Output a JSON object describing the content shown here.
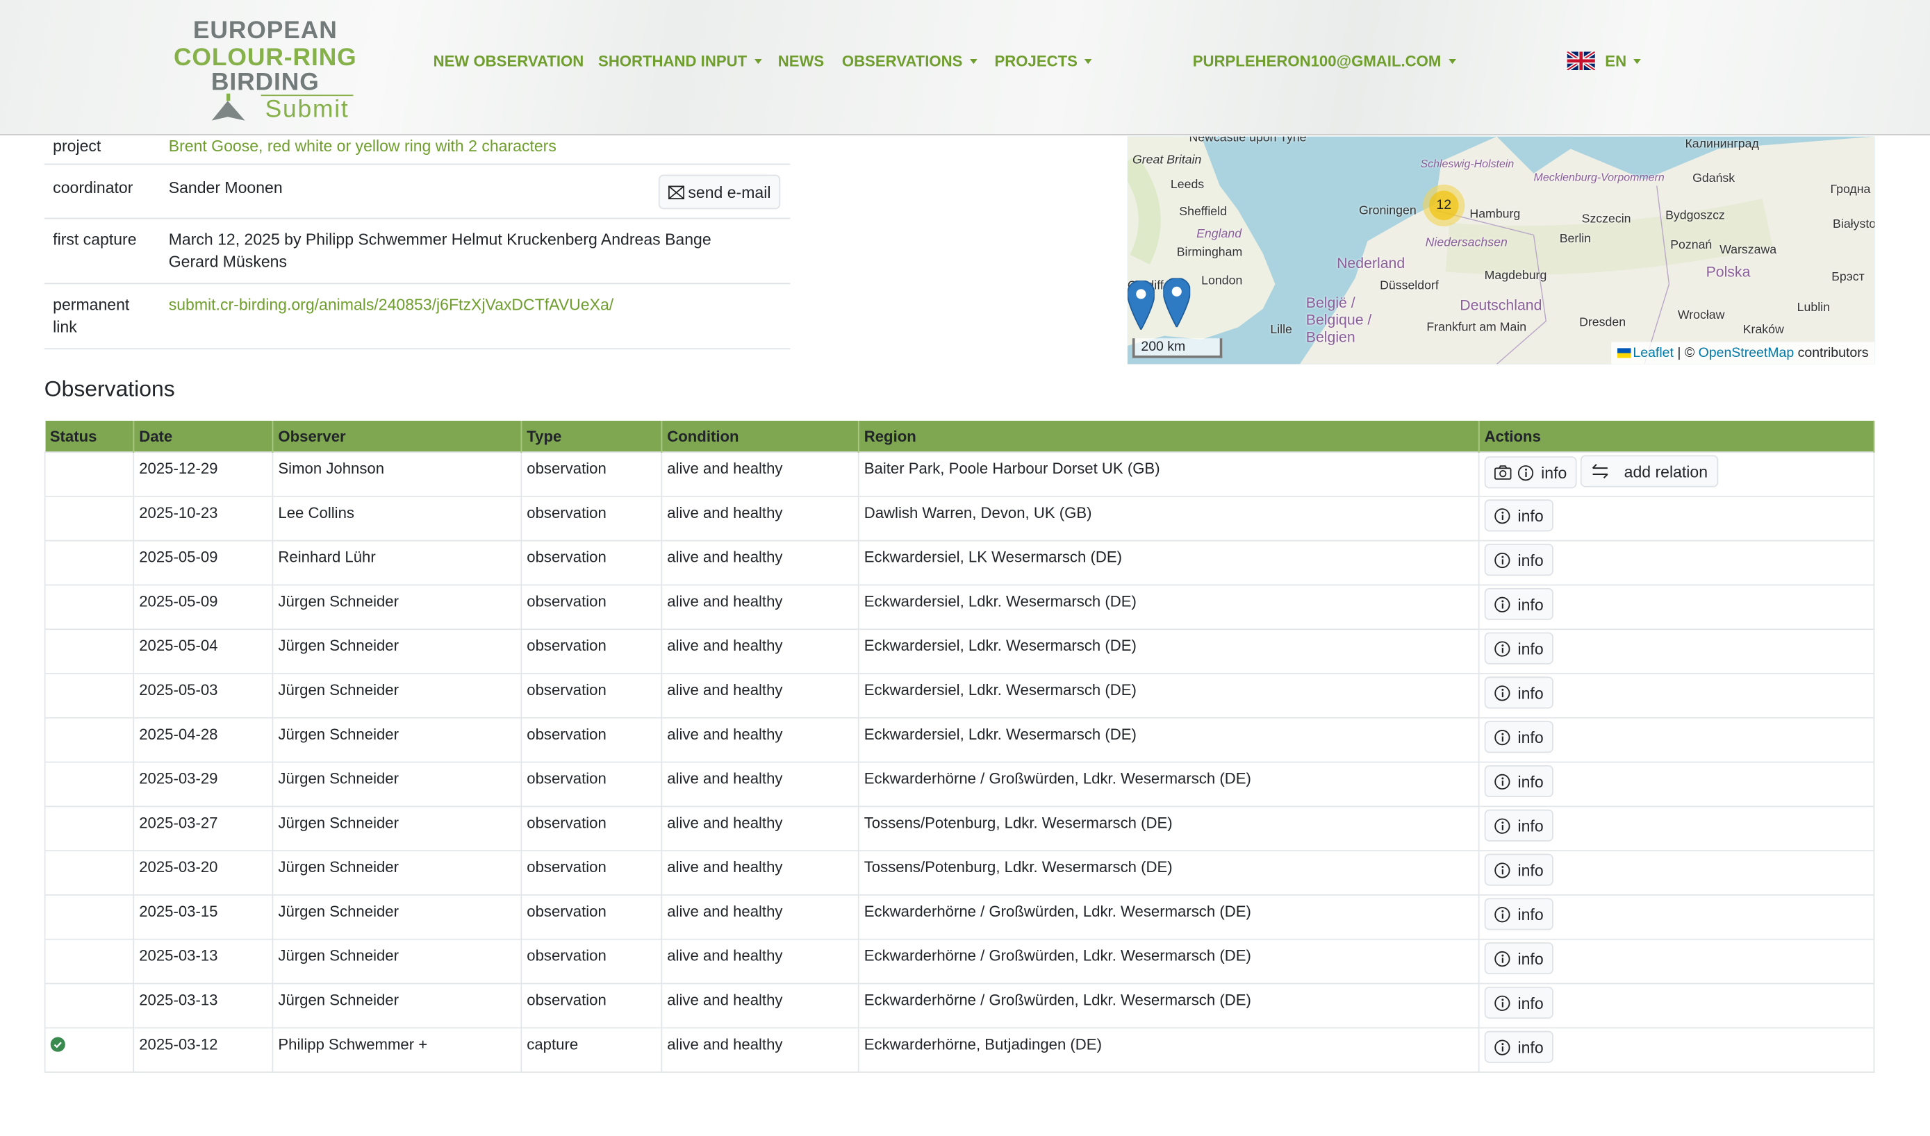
{
  "header": {
    "logo": {
      "line1": "EUROPEAN",
      "line2": "COLOUR-RING",
      "line3": "BIRDING",
      "line4": "Submit"
    },
    "nav": [
      {
        "label": "NEW OBSERVATION",
        "dropdown": false
      },
      {
        "label": "SHORTHAND INPUT",
        "dropdown": true
      },
      {
        "label": "NEWS",
        "dropdown": false
      },
      {
        "label": "OBSERVATIONS",
        "dropdown": true
      },
      {
        "label": "PROJECTS",
        "dropdown": true
      }
    ],
    "user": "PURPLEHERON100@GMAIL.COM",
    "language": "EN",
    "language_icon": "uk-flag-icon"
  },
  "details": {
    "project": {
      "label": "project",
      "value": "Brent Goose, red white or yellow ring with 2 characters"
    },
    "coordinator": {
      "label": "coordinator",
      "value": "Sander Moonen",
      "button": "send e-mail"
    },
    "first_capture": {
      "label": "first capture",
      "value": "March 12, 2025 by Philipp Schwemmer Helmut Kruckenberg Andreas Bange Gerard Müskens"
    },
    "permanent_link": {
      "label": "permanent link",
      "value": "submit.cr-birding.org/animals/240853/j6FtzXjVaxDCTfAVUeXa/"
    }
  },
  "map": {
    "cluster_count": "12",
    "scale": "200 km",
    "attribution": {
      "leaflet": "Leaflet",
      "sep": " | © ",
      "osm": "OpenStreetMap",
      "rest": " contributors"
    },
    "labels": [
      "Newcastle upon Tyne",
      "Great Britain",
      "Leeds",
      "Sheffield",
      "England",
      "Birmingham",
      "London",
      "Cardiff",
      "Groningen",
      "Hamburg",
      "Schleswig-Holstein",
      "Mecklenburg-Vorpommern",
      "Niedersachsen",
      "Nederland",
      "Düsseldorf",
      "Deutschland",
      "België / Belgique / Belgien",
      "Lille",
      "Frankfurt am Main",
      "Magdeburg",
      "Berlin",
      "Szczecin",
      "Dresden",
      "Gdańsk",
      "Калининград",
      "Bydgoszcz",
      "Poznań",
      "Polska",
      "Warszawa",
      "Wrocław",
      "Lublin",
      "Гродна",
      "Białystok",
      "Брэст",
      "Kraków"
    ]
  },
  "observations": {
    "title": "Observations",
    "columns": [
      "Status",
      "Date",
      "Observer",
      "Type",
      "Condition",
      "Region",
      "Actions"
    ],
    "info_label": "info",
    "add_relation_label": "add relation",
    "status_color": "#3a8a4f",
    "header_color": "#7fa650",
    "rows": [
      {
        "status": "",
        "date": "2025-12-29",
        "observer": "Simon Johnson",
        "type": "observation",
        "condition": "alive and healthy",
        "region": "Baiter Park, Poole Harbour Dorset UK (GB)",
        "photo": true,
        "relation": true
      },
      {
        "status": "",
        "date": "2025-10-23",
        "observer": "Lee Collins",
        "type": "observation",
        "condition": "alive and healthy",
        "region": "Dawlish Warren, Devon, UK (GB)"
      },
      {
        "status": "",
        "date": "2025-05-09",
        "observer": "Reinhard Lühr",
        "type": "observation",
        "condition": "alive and healthy",
        "region": "Eckwardersiel, LK Wesermarsch (DE)"
      },
      {
        "status": "",
        "date": "2025-05-09",
        "observer": "Jürgen Schneider",
        "type": "observation",
        "condition": "alive and healthy",
        "region": "Eckwardersiel, Ldkr. Wesermarsch (DE)"
      },
      {
        "status": "",
        "date": "2025-05-04",
        "observer": "Jürgen Schneider",
        "type": "observation",
        "condition": "alive and healthy",
        "region": "Eckwardersiel, Ldkr. Wesermarsch (DE)"
      },
      {
        "status": "",
        "date": "2025-05-03",
        "observer": "Jürgen Schneider",
        "type": "observation",
        "condition": "alive and healthy",
        "region": "Eckwardersiel, Ldkr. Wesermarsch (DE)"
      },
      {
        "status": "",
        "date": "2025-04-28",
        "observer": "Jürgen Schneider",
        "type": "observation",
        "condition": "alive and healthy",
        "region": "Eckwardersiel, Ldkr. Wesermarsch (DE)"
      },
      {
        "status": "",
        "date": "2025-03-29",
        "observer": "Jürgen Schneider",
        "type": "observation",
        "condition": "alive and healthy",
        "region": "Eckwarderhörne / Großwürden, Ldkr. Wesermarsch (DE)"
      },
      {
        "status": "",
        "date": "2025-03-27",
        "observer": "Jürgen Schneider",
        "type": "observation",
        "condition": "alive and healthy",
        "region": "Tossens/Potenburg, Ldkr. Wesermarsch (DE)"
      },
      {
        "status": "",
        "date": "2025-03-20",
        "observer": "Jürgen Schneider",
        "type": "observation",
        "condition": "alive and healthy",
        "region": "Tossens/Potenburg, Ldkr. Wesermarsch (DE)"
      },
      {
        "status": "",
        "date": "2025-03-15",
        "observer": "Jürgen Schneider",
        "type": "observation",
        "condition": "alive and healthy",
        "region": "Eckwarderhörne / Großwürden, Ldkr. Wesermarsch (DE)"
      },
      {
        "status": "",
        "date": "2025-03-13",
        "observer": "Jürgen Schneider",
        "type": "observation",
        "condition": "alive and healthy",
        "region": "Eckwarderhörne / Großwürden, Ldkr. Wesermarsch (DE)"
      },
      {
        "status": "",
        "date": "2025-03-13",
        "observer": "Jürgen Schneider",
        "type": "observation",
        "condition": "alive and healthy",
        "region": "Eckwarderhörne / Großwürden, Ldkr. Wesermarsch (DE)"
      },
      {
        "status": "verified",
        "date": "2025-03-12",
        "observer": "Philipp Schwemmer +",
        "type": "capture",
        "condition": "alive and healthy",
        "region": "Eckwarderhörne, Butjadingen (DE)"
      }
    ]
  }
}
